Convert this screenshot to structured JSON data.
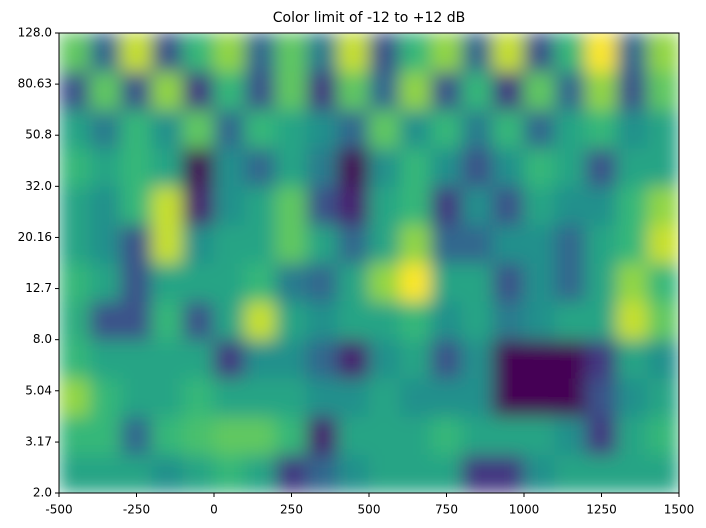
{
  "chart_data": {
    "type": "contour",
    "title": "Color limit of -12 to +12 dB",
    "colormap": "viridis",
    "clim": [
      -12,
      12
    ],
    "xlim": [
      -500,
      1500
    ],
    "xticks": [
      -500,
      -250,
      0,
      250,
      500,
      750,
      1000,
      1250,
      1500
    ],
    "ylim": [
      2,
      128
    ],
    "yscale": "log",
    "yticks": [
      {
        "value": 2,
        "label": "2.0"
      },
      3.17,
      5.04,
      {
        "value": 8,
        "label": "8.0"
      },
      12.7,
      20.16,
      {
        "value": 32,
        "label": "32.0"
      },
      50.8,
      80.63,
      {
        "value": 128,
        "label": "128.0"
      }
    ],
    "z": [
      [
        2,
        2,
        2,
        0,
        2,
        4,
        2,
        -8,
        -4,
        0,
        2,
        2,
        2,
        -8,
        -8,
        0,
        2,
        2,
        2,
        2
      ],
      [
        4,
        4,
        -4,
        4,
        5,
        6,
        6,
        4,
        -10,
        2,
        2,
        2,
        4,
        2,
        2,
        2,
        0,
        -8,
        2,
        4
      ],
      [
        8,
        4,
        2,
        2,
        4,
        2,
        2,
        2,
        0,
        0,
        2,
        0,
        0,
        0,
        -12,
        -12,
        -12,
        -6,
        0,
        2
      ],
      [
        4,
        2,
        2,
        2,
        2,
        -8,
        0,
        0,
        -4,
        -10,
        0,
        2,
        -6,
        0,
        -12,
        -12,
        -12,
        -8,
        2,
        0
      ],
      [
        3,
        -6,
        -6,
        4,
        -6,
        2,
        10,
        2,
        0,
        2,
        2,
        4,
        0,
        2,
        -2,
        0,
        2,
        2,
        10,
        6
      ],
      [
        4,
        2,
        -6,
        2,
        2,
        2,
        4,
        -2,
        -4,
        2,
        8,
        12,
        2,
        2,
        -6,
        0,
        -4,
        2,
        8,
        4
      ],
      [
        2,
        0,
        -6,
        10,
        0,
        2,
        2,
        6,
        2,
        -4,
        2,
        8,
        -4,
        -4,
        0,
        0,
        -4,
        2,
        4,
        10
      ],
      [
        2,
        0,
        4,
        10,
        -10,
        0,
        2,
        6,
        -6,
        -10,
        2,
        4,
        -8,
        0,
        -6,
        2,
        0,
        0,
        4,
        8
      ],
      [
        4,
        2,
        4,
        2,
        -12,
        0,
        -4,
        2,
        -2,
        -12,
        0,
        4,
        0,
        -6,
        0,
        4,
        2,
        -6,
        2,
        2
      ],
      [
        2,
        -2,
        4,
        0,
        6,
        -4,
        4,
        2,
        0,
        -4,
        6,
        0,
        4,
        -2,
        4,
        -4,
        2,
        4,
        0,
        2
      ],
      [
        -6,
        6,
        -6,
        8,
        -8,
        4,
        -6,
        6,
        -8,
        6,
        -4,
        8,
        -6,
        4,
        -8,
        6,
        -4,
        8,
        -6,
        6
      ],
      [
        6,
        -4,
        10,
        -6,
        4,
        8,
        -4,
        6,
        -2,
        10,
        -6,
        4,
        8,
        -4,
        10,
        -6,
        4,
        12,
        -4,
        8
      ]
    ]
  }
}
